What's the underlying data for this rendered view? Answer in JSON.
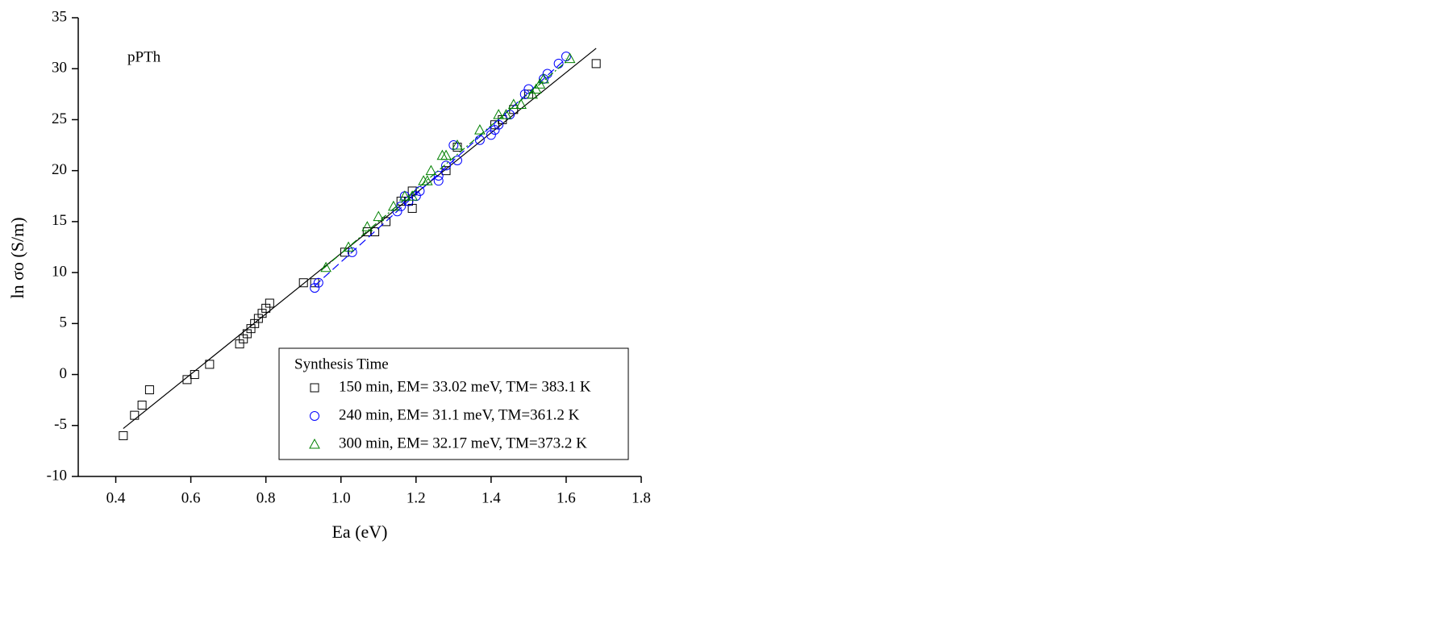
{
  "chart_data": {
    "type": "scatter",
    "xlabel": "Ea (eV)",
    "ylabel": "ln σo (S/m)",
    "annotation": "pPTh",
    "legend_title": "Synthesis Time",
    "legend": "lower right",
    "xlim": [
      0.3,
      1.8
    ],
    "ylim": [
      -10,
      35
    ],
    "xticks": [
      0.4,
      0.6,
      0.8,
      {
        "value": 1,
        "label": "1.0"
      },
      1.2,
      1.4,
      1.6,
      1.8
    ],
    "yticks": [
      -10,
      -5,
      0,
      5,
      10,
      15,
      20,
      25,
      30,
      35
    ],
    "series": [
      {
        "name": "150 min,  EM= 33.02 meV, TM= 383.1 K",
        "color": "#000000",
        "marker": "square",
        "fit_dash": "none",
        "x": [
          0.42,
          0.45,
          0.47,
          0.49,
          0.59,
          0.61,
          0.65,
          0.73,
          0.74,
          0.75,
          0.76,
          0.77,
          0.78,
          0.79,
          0.8,
          0.81,
          0.9,
          0.93,
          1.01,
          1.07,
          1.09,
          1.12,
          1.16,
          1.18,
          1.19,
          1.19,
          1.28,
          1.31,
          1.41,
          1.43,
          1.46,
          1.5,
          1.68
        ],
        "values": [
          -6,
          -4,
          -3,
          -1.5,
          -0.5,
          0,
          1,
          3,
          3.5,
          4,
          4.5,
          5,
          5.5,
          6,
          6.5,
          7,
          9,
          9,
          12,
          14,
          14,
          15,
          17,
          17,
          16.3,
          18,
          20,
          22.3,
          24.5,
          25,
          26,
          27.5,
          30.5
        ],
        "fit": {
          "x": [
            0.42,
            1.68
          ],
          "y": [
            -5.3,
            32
          ]
        }
      },
      {
        "name": "240 min,  EM= 31.1 meV,   TM=361.2 K",
        "color": "#0000ff",
        "marker": "circle",
        "fit_dash": "10 5",
        "x": [
          0.93,
          0.94,
          1.03,
          1.15,
          1.16,
          1.17,
          1.18,
          1.2,
          1.21,
          1.26,
          1.26,
          1.28,
          1.3,
          1.31,
          1.37,
          1.4,
          1.41,
          1.42,
          1.45,
          1.49,
          1.5,
          1.54,
          1.55,
          1.58,
          1.6
        ],
        "values": [
          8.5,
          9,
          12,
          16,
          16.5,
          17.5,
          17,
          17.5,
          18,
          19,
          19.5,
          20.5,
          22.5,
          21,
          23,
          23.5,
          24,
          24.5,
          25.5,
          27.5,
          28,
          29,
          29.5,
          30.5,
          31.2
        ],
        "fit": {
          "x": [
            0.93,
            1.6
          ],
          "y": [
            8.7,
            31
          ]
        }
      },
      {
        "name": "300 min,  EM= 32.17 meV, TM=373.2 K",
        "color": "#008000",
        "marker": "triangle",
        "fit_dash": "8 3 2 3",
        "x": [
          0.96,
          1.02,
          1.07,
          1.1,
          1.14,
          1.17,
          1.19,
          1.22,
          1.23,
          1.24,
          1.27,
          1.28,
          1.31,
          1.37,
          1.42,
          1.44,
          1.46,
          1.48,
          1.51,
          1.52,
          1.53,
          1.54,
          1.61
        ],
        "values": [
          10.5,
          12.5,
          14.5,
          15.5,
          16.5,
          17.5,
          17.5,
          19,
          19,
          20,
          21.5,
          21.5,
          22.5,
          24,
          25.5,
          25.5,
          26.5,
          26.5,
          27.5,
          28,
          28.5,
          29,
          31
        ],
        "fit": {
          "x": [
            0.95,
            1.61
          ],
          "y": [
            10.3,
            31
          ]
        }
      }
    ]
  }
}
